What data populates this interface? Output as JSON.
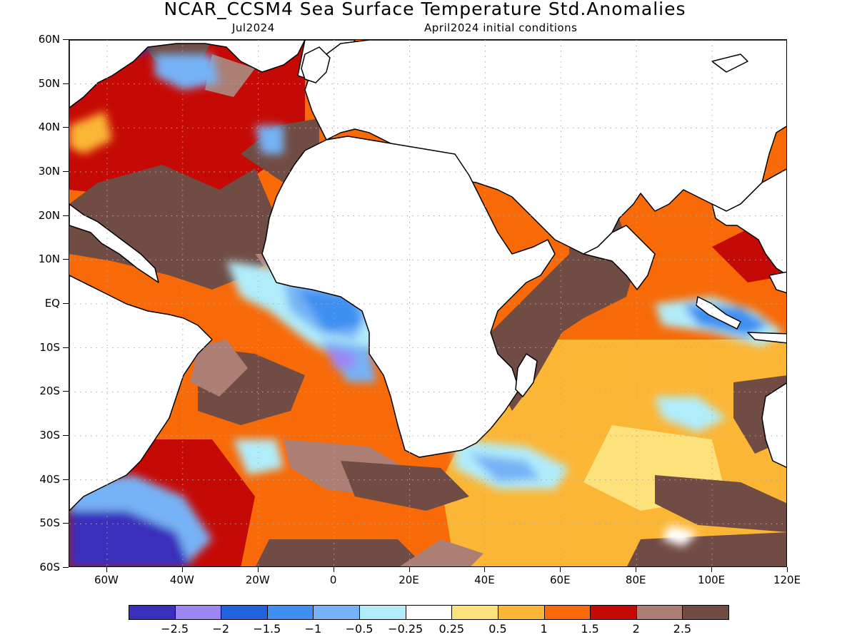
{
  "header": {
    "title": "NCAR_CCSM4 Sea Surface Temperature Std.Anomalies",
    "subtitle_left": "Jul2024",
    "subtitle_right": "April2024 initial conditions"
  },
  "axes": {
    "lat_labels": [
      "60N",
      "50N",
      "40N",
      "30N",
      "20N",
      "10N",
      "EQ",
      "10S",
      "20S",
      "30S",
      "40S",
      "50S",
      "60S"
    ],
    "lon_labels": [
      "60W",
      "40W",
      "20W",
      "0",
      "20E",
      "40E",
      "60E",
      "80E",
      "100E",
      "120E"
    ],
    "lon_range": [
      -70,
      120
    ],
    "lat_range": [
      -60,
      60
    ],
    "grid": "dotted"
  },
  "colorbar": {
    "labels": [
      "−2.5",
      "−2",
      "−1.5",
      "−1",
      "−0.5",
      "−0.25",
      "0.25",
      "0.5",
      "1",
      "1.5",
      "2",
      "2.5"
    ],
    "colors": [
      "#3a2fbd",
      "#9c86f2",
      "#2163dc",
      "#3e8ff0",
      "#76b2f6",
      "#b0ecfa",
      "#ffffff",
      "#fde17a",
      "#fcb635",
      "#f76a07",
      "#c50a05",
      "#ad7e74",
      "#714c44"
    ]
  },
  "colors": {
    "land": "#ffffff",
    "coast": "#000000",
    "grid": "#aaaaaa"
  }
}
